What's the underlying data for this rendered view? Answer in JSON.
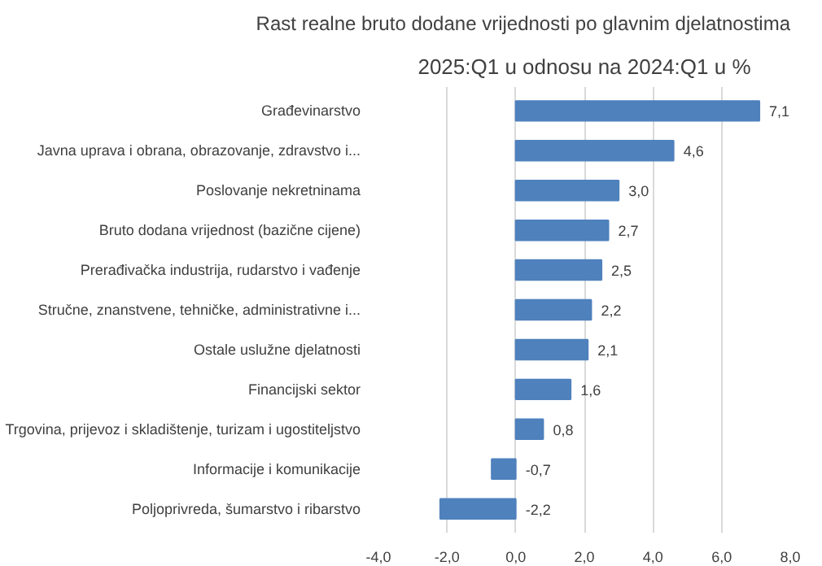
{
  "chart_data": {
    "type": "bar",
    "orientation": "horizontal",
    "title": "Rast realne bruto dodane vrijednosti po glavnim djelatnostima",
    "subtitle": "2025:Q1 u odnosu na 2024:Q1 u %",
    "categories": [
      "Građevinarstvo",
      "Javna uprava i obrana, obrazovanje, zdravstvo i...",
      "Poslovanje nekretninama",
      "Bruto dodana vrijednost (bazične cijene)",
      "Prerađivačka industrija, rudarstvo i vađenje",
      "Stručne, znanstvene, tehničke, administrativne i...",
      "Ostale uslužne djelatnosti",
      "Financijski sektor",
      "Trgovina, prijevoz i skladištenje, turizam i ugostiteljstvo",
      "Informacije i komunikacije",
      "Poljoprivreda, šumarstvo i ribarstvo"
    ],
    "values": [
      7.1,
      4.6,
      3.0,
      2.7,
      2.5,
      2.2,
      2.1,
      1.6,
      0.8,
      -0.7,
      -2.2
    ],
    "value_labels": [
      "7,1",
      "4,6",
      "3,0",
      "2,7",
      "2,5",
      "2,2",
      "2,1",
      "1,6",
      "0,8",
      "-0,7",
      "-2,2"
    ],
    "color": "#4f81bd",
    "xlim": [
      -4,
      8
    ],
    "xticks": [
      {
        "value": -4,
        "label": "-4,0"
      },
      {
        "value": -2,
        "label": "-2,0"
      },
      {
        "value": 0,
        "label": "0,0"
      },
      {
        "value": 2,
        "label": "2,0"
      },
      {
        "value": 4,
        "label": "4,0"
      },
      {
        "value": 6,
        "label": "6,0"
      },
      {
        "value": 8,
        "label": "8,0"
      }
    ],
    "grid": "x"
  }
}
